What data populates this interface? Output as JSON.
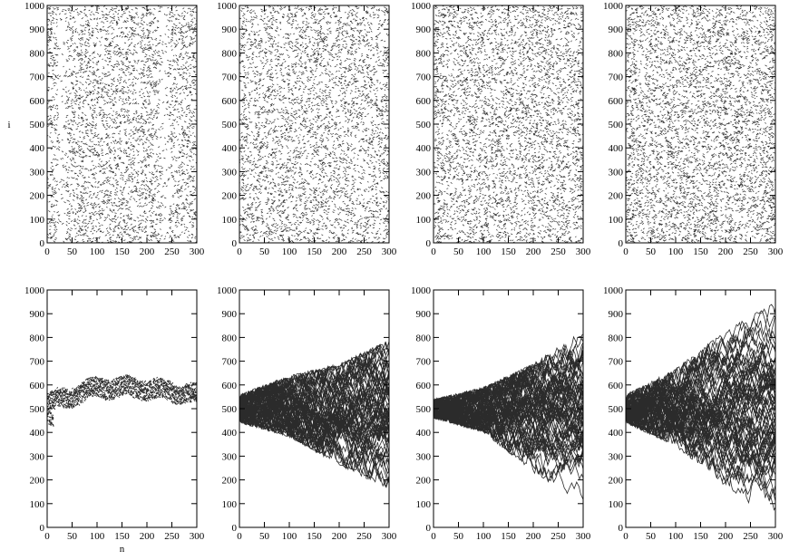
{
  "chart_data": [
    {
      "type": "scatter",
      "row": 0,
      "col": 0,
      "pattern": "noise",
      "density": 0.95,
      "gaps": [
        20,
        38,
        227,
        244
      ],
      "xlim": [
        0,
        300
      ],
      "ylim": [
        0,
        1000
      ],
      "xticks": [
        0,
        50,
        100,
        150,
        200,
        250,
        300
      ],
      "yticks": [
        0,
        100,
        200,
        300,
        400,
        500,
        600,
        700,
        800,
        900,
        1000
      ],
      "xlabel": "",
      "ylabel": "i",
      "color": "#2b2b2b"
    },
    {
      "type": "scatter",
      "row": 0,
      "col": 1,
      "pattern": "noise",
      "density": 1.0,
      "gaps": [],
      "xlim": [
        0,
        300
      ],
      "ylim": [
        0,
        1000
      ],
      "xticks": [
        0,
        50,
        100,
        150,
        200,
        250,
        300
      ],
      "yticks": [
        0,
        100,
        200,
        300,
        400,
        500,
        600,
        700,
        800,
        900,
        1000
      ],
      "xlabel": "",
      "ylabel": "",
      "color": "#2b2b2b"
    },
    {
      "type": "scatter",
      "row": 0,
      "col": 2,
      "pattern": "noise",
      "density": 1.1,
      "gaps": [],
      "xlim": [
        0,
        300
      ],
      "ylim": [
        0,
        1000
      ],
      "xticks": [
        0,
        50,
        100,
        150,
        200,
        250,
        300
      ],
      "yticks": [
        0,
        100,
        200,
        300,
        400,
        500,
        600,
        700,
        800,
        900,
        1000
      ],
      "xlabel": "",
      "ylabel": "",
      "color": "#2b2b2b"
    },
    {
      "type": "scatter",
      "row": 0,
      "col": 3,
      "pattern": "noise",
      "density": 1.2,
      "gaps": [],
      "xlim": [
        0,
        300
      ],
      "ylim": [
        0,
        1000
      ],
      "xticks": [
        0,
        50,
        100,
        150,
        200,
        250,
        300
      ],
      "yticks": [
        0,
        100,
        200,
        300,
        400,
        500,
        600,
        700,
        800,
        900,
        1000
      ],
      "xlabel": "",
      "ylabel": "",
      "color": "#2b2b2b"
    },
    {
      "type": "scatter",
      "row": 1,
      "col": 0,
      "pattern": "band",
      "start": [
        0,
        500
      ],
      "center": [
        [
          0,
          520
        ],
        [
          100,
          590
        ],
        [
          200,
          585
        ],
        [
          300,
          560
        ]
      ],
      "halfwidth": [
        [
          0,
          40
        ],
        [
          300,
          40
        ]
      ],
      "xlim": [
        0,
        300
      ],
      "ylim": [
        0,
        1000
      ],
      "xticks": [
        0,
        50,
        100,
        150,
        200,
        250,
        300
      ],
      "yticks": [
        0,
        100,
        200,
        300,
        400,
        500,
        600,
        700,
        800,
        900,
        1000
      ],
      "xlabel": "n",
      "ylabel": "",
      "color": "#2b2b2b"
    },
    {
      "type": "scatter",
      "row": 1,
      "col": 1,
      "pattern": "fan",
      "start": [
        0,
        500
      ],
      "upper": [
        [
          0,
          560
        ],
        [
          100,
          640
        ],
        [
          200,
          690
        ],
        [
          300,
          790
        ]
      ],
      "lower": [
        [
          0,
          440
        ],
        [
          100,
          380
        ],
        [
          200,
          260
        ],
        [
          300,
          160
        ]
      ],
      "xlim": [
        0,
        300
      ],
      "ylim": [
        0,
        1000
      ],
      "xticks": [
        0,
        50,
        100,
        150,
        200,
        250,
        300
      ],
      "yticks": [
        0,
        100,
        200,
        300,
        400,
        500,
        600,
        700,
        800,
        900,
        1000
      ],
      "xlabel": "",
      "ylabel": "",
      "color": "#2b2b2b"
    },
    {
      "type": "scatter",
      "row": 1,
      "col": 2,
      "pattern": "fan",
      "start": [
        0,
        500
      ],
      "upper": [
        [
          0,
          540
        ],
        [
          100,
          590
        ],
        [
          200,
          690
        ],
        [
          300,
          830
        ]
      ],
      "lower": [
        [
          0,
          460
        ],
        [
          100,
          400
        ],
        [
          200,
          230
        ],
        [
          300,
          100
        ]
      ],
      "xlim": [
        0,
        300
      ],
      "ylim": [
        0,
        1000
      ],
      "xticks": [
        0,
        50,
        100,
        150,
        200,
        250,
        300
      ],
      "yticks": [
        0,
        100,
        200,
        300,
        400,
        500,
        600,
        700,
        800,
        900,
        1000
      ],
      "xlabel": "",
      "ylabel": "",
      "color": "#2b2b2b"
    },
    {
      "type": "scatter",
      "row": 1,
      "col": 3,
      "pattern": "fan",
      "start": [
        0,
        500
      ],
      "upper": [
        [
          0,
          560
        ],
        [
          100,
          670
        ],
        [
          200,
          830
        ],
        [
          300,
          950
        ]
      ],
      "lower": [
        [
          0,
          440
        ],
        [
          100,
          340
        ],
        [
          200,
          170
        ],
        [
          300,
          10
        ]
      ],
      "xlim": [
        0,
        300
      ],
      "ylim": [
        0,
        1000
      ],
      "xticks": [
        0,
        50,
        100,
        150,
        200,
        250,
        300
      ],
      "yticks": [
        0,
        100,
        200,
        300,
        400,
        500,
        600,
        700,
        800,
        900,
        1000
      ],
      "xlabel": "",
      "ylabel": "",
      "color": "#2b2b2b"
    }
  ]
}
